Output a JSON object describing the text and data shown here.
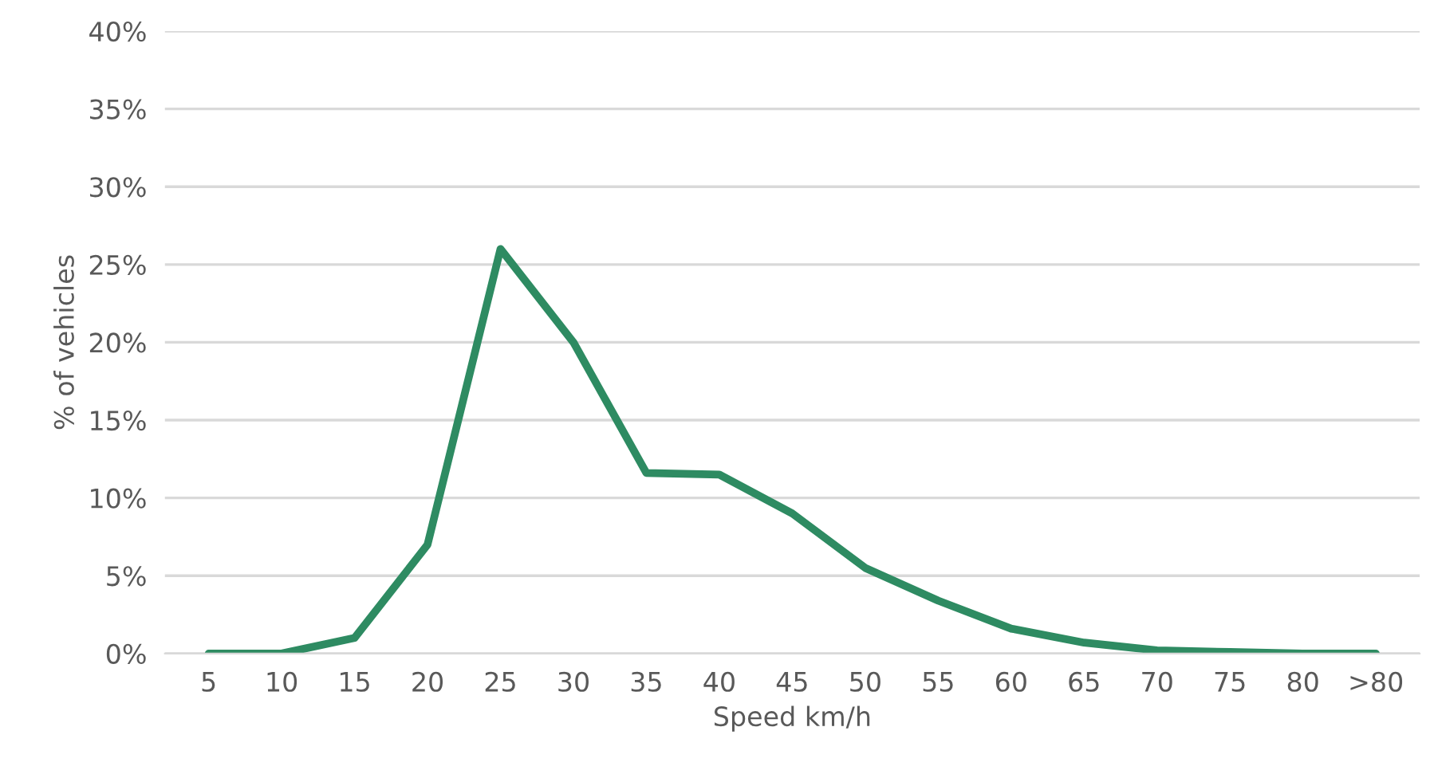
{
  "chart_data": {
    "type": "line",
    "xlabel": "Speed km/h",
    "ylabel": "% of vehicles",
    "categories": [
      "5",
      "10",
      "15",
      "20",
      "25",
      "30",
      "35",
      "40",
      "45",
      "50",
      "55",
      "60",
      "65",
      "70",
      "75",
      "80",
      ">80"
    ],
    "series": [
      {
        "color": "#2e8b62",
        "values": [
          0,
          0,
          1,
          7,
          26,
          20,
          11.6,
          11.5,
          9,
          5.5,
          3.4,
          1.6,
          0.7,
          0.2,
          0.1,
          0,
          0
        ]
      }
    ],
    "ylim": [
      0,
      40
    ],
    "yticks": [
      {
        "value": 0,
        "label": "0%"
      },
      {
        "value": 5,
        "label": "5%"
      },
      {
        "value": 10,
        "label": "10%"
      },
      {
        "value": 15,
        "label": "15%"
      },
      {
        "value": 20,
        "label": "20%"
      },
      {
        "value": 25,
        "label": "25%"
      },
      {
        "value": 30,
        "label": "30%"
      },
      {
        "value": 35,
        "label": "35%"
      },
      {
        "value": 40,
        "label": "40%"
      }
    ],
    "grid": "y",
    "marker": "none",
    "line_style": "solid"
  }
}
